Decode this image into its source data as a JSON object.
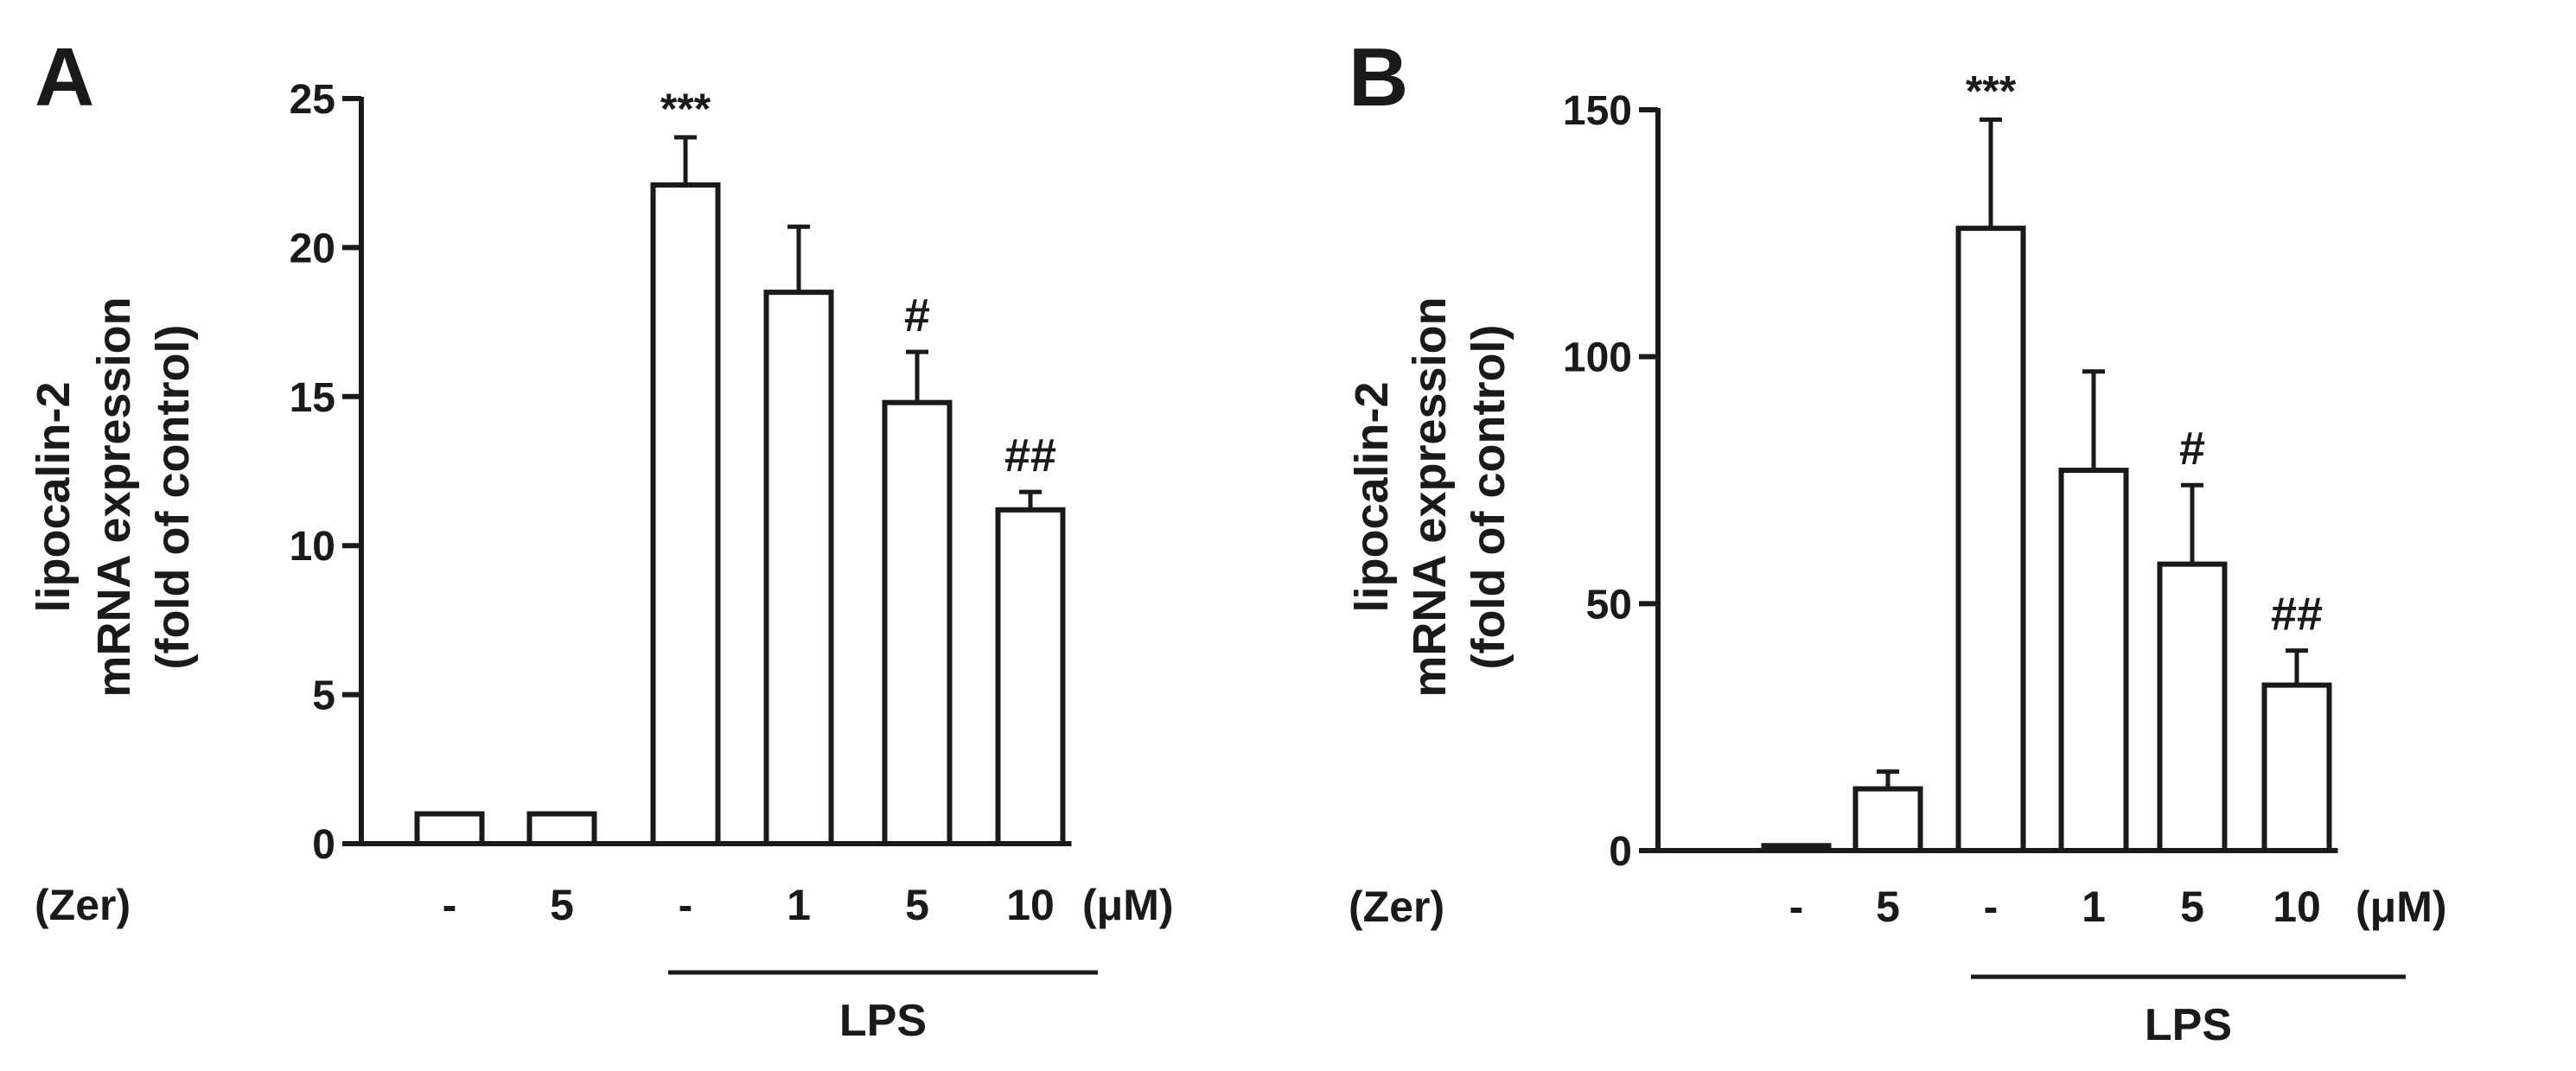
{
  "chart_data": [
    {
      "panel_label": "A",
      "type": "bar",
      "ylabel_lines": [
        "lipocalin-2",
        "mRNA expression",
        "(fold of control)"
      ],
      "ylim": [
        0,
        25
      ],
      "yticks": [
        0,
        5,
        10,
        15,
        20,
        25
      ],
      "categories": [
        "-",
        "5",
        "-",
        "1",
        "5",
        "10"
      ],
      "values": [
        1.0,
        1.0,
        22.1,
        18.5,
        14.8,
        11.2
      ],
      "errors": [
        0,
        0,
        1.6,
        2.2,
        1.7,
        0.6
      ],
      "annotations": [
        "",
        "",
        "***",
        "",
        "#",
        "##"
      ],
      "row_label": "(Zer)",
      "unit_label": "(μM)",
      "group_label": "LPS",
      "group_range": [
        2,
        5
      ]
    },
    {
      "panel_label": "B",
      "type": "bar",
      "ylabel_lines": [
        "lipocalin-2",
        "mRNA expression",
        "(fold of control)"
      ],
      "ylim": [
        0,
        150
      ],
      "yticks": [
        0,
        50,
        100,
        150
      ],
      "categories": [
        "-",
        "5",
        "-",
        "1",
        "5",
        "10"
      ],
      "values": [
        1.0,
        12.5,
        126,
        77,
        58,
        33.5
      ],
      "errors": [
        0,
        3.5,
        22,
        20,
        16,
        7
      ],
      "annotations": [
        "",
        "",
        "***",
        "",
        "#",
        "##"
      ],
      "row_label": "(Zer)",
      "unit_label": "(μM)",
      "group_label": "LPS",
      "group_range": [
        2,
        5
      ]
    }
  ]
}
